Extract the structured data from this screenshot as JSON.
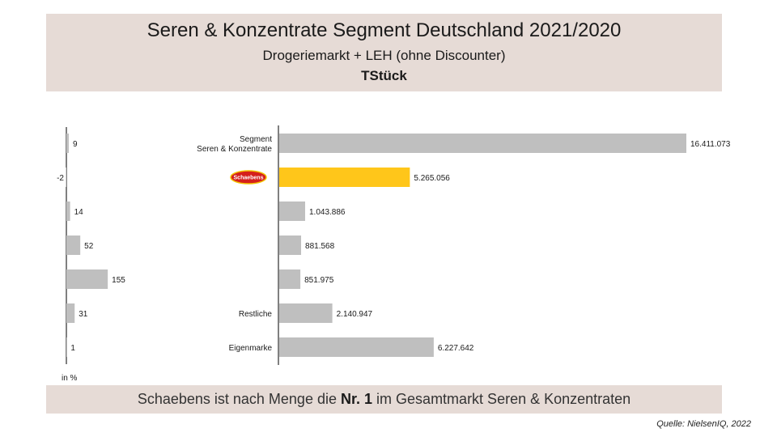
{
  "header": {
    "title": "Seren & Konzentrate Segment Deutschland 2021/2020",
    "subtitle": "Drogeriemarkt + LEH (ohne Discounter)",
    "unit": "TStück"
  },
  "footer": {
    "text_before": "Schaebens ist nach Menge die",
    "text_bold": "Nr. 1",
    "text_after": "im Gesamtmarkt Seren & Konzentraten"
  },
  "source": "Quelle: NielsenIQ, 2022",
  "colors": {
    "bar": "#bfbfbf",
    "highlight": "#ffc61a",
    "negative": "#e0201c",
    "panel": "#e6dbd6"
  },
  "chart_data": [
    {
      "type": "bar",
      "orientation": "horizontal",
      "name": "change",
      "xlabel": "in %",
      "categories": [
        "Segment Seren & Konzentrate",
        "Schaebens",
        "",
        "",
        "",
        "Restliche",
        "Eigenmarke"
      ],
      "values": [
        9,
        -2,
        14,
        52,
        155,
        31,
        1
      ],
      "labels": [
        "9",
        "-2",
        "14",
        "52",
        "155",
        "31",
        "1"
      ]
    },
    {
      "type": "bar",
      "orientation": "horizontal",
      "name": "volume",
      "categories": [
        "Segment\nSeren & Konzentrate",
        "Schaebens",
        "",
        "",
        "",
        "Restliche",
        "Eigenmarke"
      ],
      "values": [
        16411073,
        5265056,
        1043886,
        881568,
        851975,
        2140947,
        6227642
      ],
      "labels": [
        "16.411.073",
        "5.265.056",
        "1.043.886",
        "881.568",
        "851.975",
        "2.140.947",
        "6.227.642"
      ],
      "highlight_index": 1,
      "logo_text": "Schaebens"
    }
  ]
}
